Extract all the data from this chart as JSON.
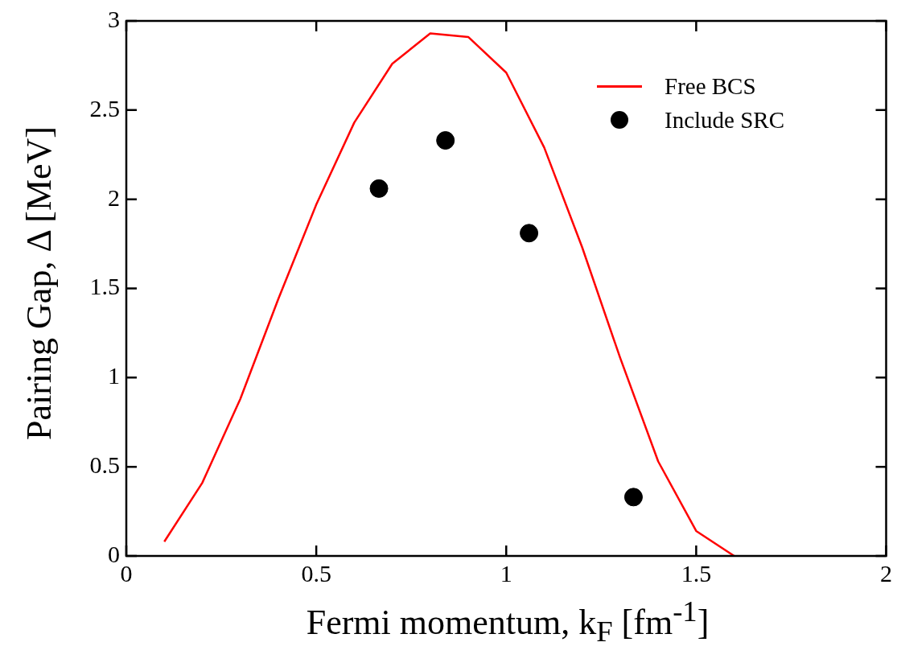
{
  "chart_data": {
    "type": "line",
    "xlabel": "Fermi momentum, k$_{F}$ [fm$^{-1}$]",
    "ylabel": "Pairing Gap, Δ [MeV]",
    "xlim": [
      0,
      2
    ],
    "ylim": [
      0,
      3
    ],
    "xticks": [
      0,
      0.5,
      1,
      1.5,
      2
    ],
    "yticks": [
      0,
      0.5,
      1,
      1.5,
      2,
      2.5,
      3
    ],
    "grid": false,
    "legend": "top right",
    "series": [
      {
        "name": "Free BCS",
        "color": "#ff0000",
        "marker": "none",
        "line_style": "solid",
        "x": [
          0.1,
          0.2,
          0.3,
          0.4,
          0.5,
          0.6,
          0.7,
          0.8,
          0.9,
          1.0,
          1.1,
          1.2,
          1.3,
          1.4,
          1.5,
          1.6
        ],
        "values": [
          0.08,
          0.41,
          0.88,
          1.44,
          1.97,
          2.43,
          2.76,
          2.93,
          2.91,
          2.71,
          2.29,
          1.73,
          1.11,
          0.53,
          0.14,
          0.0
        ]
      },
      {
        "name": "Include SRC",
        "type": "scatter",
        "color": "#000000",
        "marker": "circle",
        "x": [
          0.665,
          0.84,
          1.06,
          1.335
        ],
        "values": [
          2.06,
          2.33,
          1.81,
          0.33
        ]
      }
    ]
  }
}
